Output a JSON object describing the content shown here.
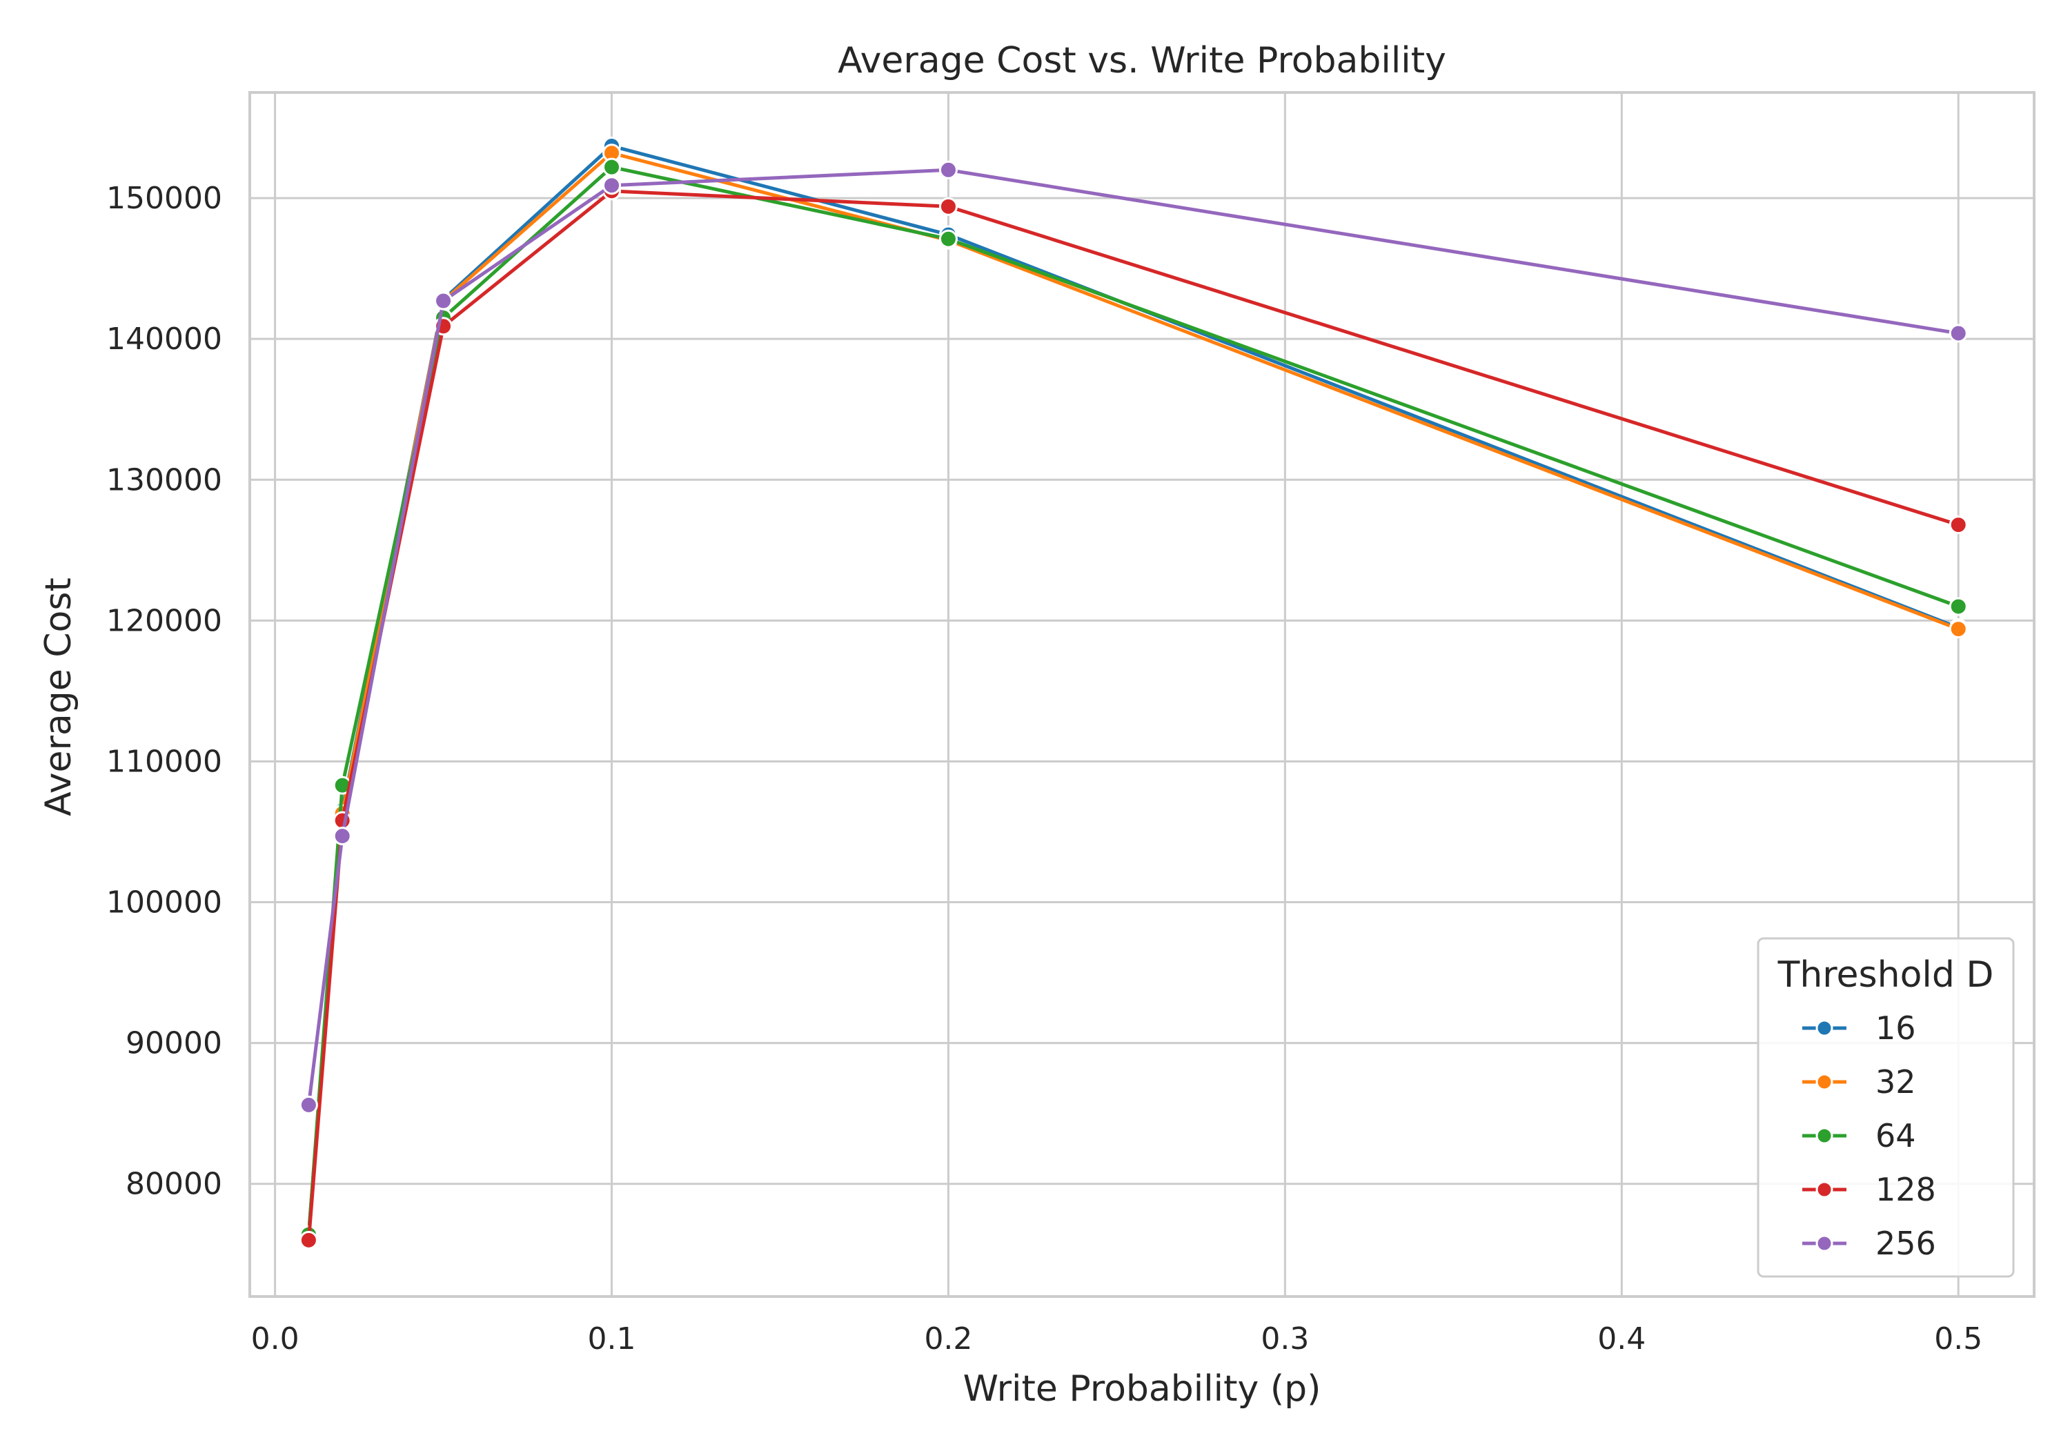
{
  "chart_data": {
    "type": "line",
    "title": "Average Cost vs. Write Probability",
    "xlabel": "Write Probability (p)",
    "ylabel": "Average Cost",
    "xlim": [
      -0.0075,
      0.5225
    ],
    "ylim": [
      72000,
      157500
    ],
    "xticks": [
      0.0,
      0.1,
      0.2,
      0.3,
      0.4,
      0.5
    ],
    "xtick_labels": [
      "0.0",
      "0.1",
      "0.2",
      "0.3",
      "0.4",
      "0.5"
    ],
    "yticks": [
      80000,
      90000,
      100000,
      110000,
      120000,
      130000,
      140000,
      150000
    ],
    "ytick_labels": [
      "80000",
      "90000",
      "100000",
      "110000",
      "120000",
      "130000",
      "140000",
      "150000"
    ],
    "grid": true,
    "legend": {
      "title": "Threshold D",
      "placement": "lower-right"
    },
    "x": [
      0.01,
      0.02,
      0.05,
      0.1,
      0.2,
      0.5
    ],
    "series": [
      {
        "name": "16",
        "color": "#1f77b4",
        "values": [
          76500,
          106500,
          142800,
          153700,
          147400,
          119500
        ]
      },
      {
        "name": "32",
        "color": "#ff7f0e",
        "values": [
          76300,
          106300,
          142700,
          153200,
          147000,
          119400
        ]
      },
      {
        "name": "64",
        "color": "#2ca02c",
        "values": [
          76400,
          108300,
          141500,
          152200,
          147100,
          121000
        ]
      },
      {
        "name": "128",
        "color": "#d62728",
        "values": [
          76000,
          105800,
          140900,
          150500,
          149400,
          126800
        ]
      },
      {
        "name": "256",
        "color": "#9467bd",
        "values": [
          85600,
          104700,
          142700,
          150900,
          152000,
          140400
        ]
      }
    ]
  }
}
